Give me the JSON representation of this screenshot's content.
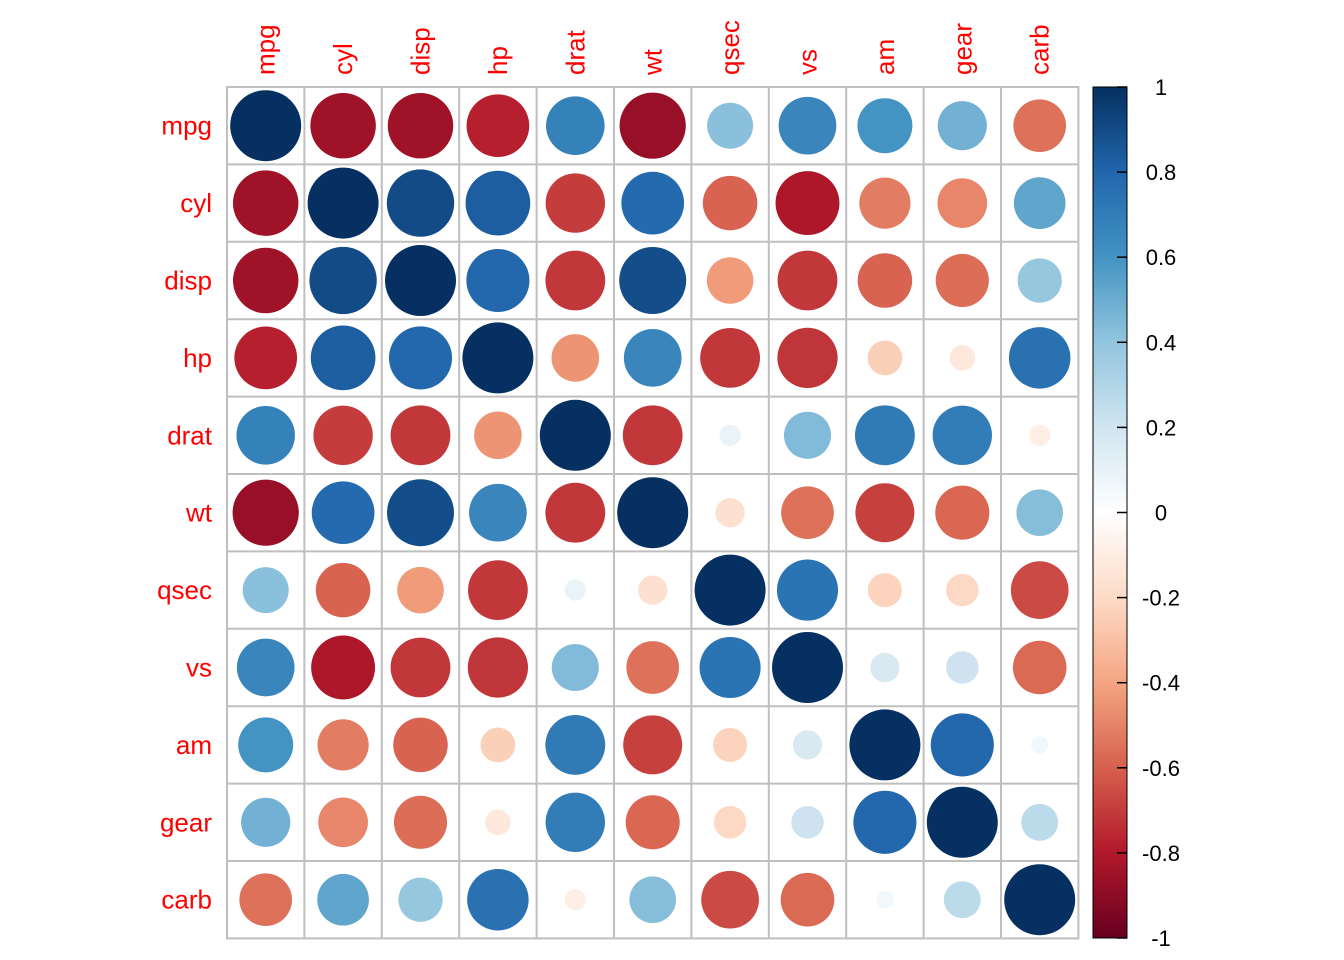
{
  "chart_data": {
    "type": "heatmap",
    "variables": [
      "mpg",
      "cyl",
      "disp",
      "hp",
      "drat",
      "wt",
      "qsec",
      "vs",
      "am",
      "gear",
      "carb"
    ],
    "matrix": [
      [
        1,
        -0.85,
        -0.85,
        -0.78,
        0.68,
        -0.87,
        0.42,
        0.66,
        0.6,
        0.48,
        -0.55
      ],
      [
        -0.85,
        1,
        0.9,
        0.83,
        -0.7,
        0.78,
        -0.59,
        -0.81,
        -0.52,
        -0.49,
        0.53
      ],
      [
        -0.85,
        0.9,
        1,
        0.79,
        -0.71,
        0.89,
        -0.43,
        -0.71,
        -0.59,
        -0.56,
        0.39
      ],
      [
        -0.78,
        0.83,
        0.79,
        1,
        -0.45,
        0.66,
        -0.71,
        -0.72,
        -0.24,
        -0.13,
        0.75
      ],
      [
        0.68,
        -0.7,
        -0.71,
        -0.45,
        1,
        -0.71,
        0.09,
        0.44,
        0.71,
        0.7,
        -0.09
      ],
      [
        -0.87,
        0.78,
        0.89,
        0.66,
        -0.71,
        1,
        -0.17,
        -0.55,
        -0.69,
        -0.58,
        0.43
      ],
      [
        0.42,
        -0.59,
        -0.43,
        -0.71,
        0.09,
        -0.17,
        1,
        0.74,
        -0.23,
        -0.21,
        -0.66
      ],
      [
        0.66,
        -0.81,
        -0.71,
        -0.72,
        0.44,
        -0.55,
        0.74,
        1,
        0.17,
        0.21,
        -0.57
      ],
      [
        0.6,
        -0.52,
        -0.59,
        -0.24,
        0.71,
        -0.69,
        -0.23,
        0.17,
        1,
        0.79,
        0.06
      ],
      [
        0.48,
        -0.49,
        -0.56,
        -0.13,
        0.7,
        -0.58,
        -0.21,
        0.21,
        0.79,
        1,
        0.27
      ],
      [
        -0.55,
        0.53,
        0.39,
        0.75,
        -0.09,
        0.43,
        -0.66,
        -0.57,
        0.06,
        0.27,
        1
      ]
    ],
    "colorbar": {
      "range": [
        -1,
        1
      ],
      "ticks": [
        "1",
        "0.8",
        "0.6",
        "0.4",
        "0.2",
        "0",
        "-0.2",
        "-0.4",
        "-0.6",
        "-0.8",
        "-1"
      ],
      "colors": [
        "#67001F",
        "#B2182B",
        "#D6604D",
        "#F4A582",
        "#FDDBC7",
        "#FFFFFF",
        "#D1E5F0",
        "#92C5DE",
        "#4393C3",
        "#2166AC",
        "#053061"
      ]
    },
    "label_color": "#ff0000",
    "grid_color": "#bfbfbf"
  }
}
